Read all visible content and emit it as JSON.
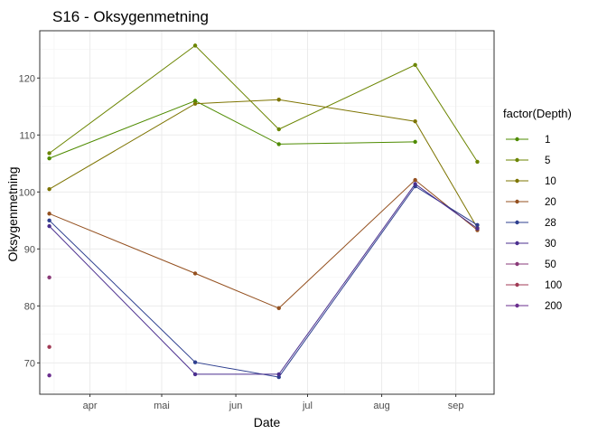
{
  "chart_data": {
    "type": "line",
    "title": "S16  -  Oksygenmetning",
    "xlabel": "Date",
    "ylabel": "Oksygenmetning",
    "x_ticks": [
      {
        "label": "apr",
        "date": "2023-04-01"
      },
      {
        "label": "mai",
        "date": "2023-05-01"
      },
      {
        "label": "jun",
        "date": "2023-06-01"
      },
      {
        "label": "jul",
        "date": "2023-07-01"
      },
      {
        "label": "aug",
        "date": "2023-08-01"
      },
      {
        "label": "sep",
        "date": "2023-09-01"
      }
    ],
    "y_ticks": [
      70,
      80,
      90,
      100,
      110,
      120
    ],
    "xlim": [
      "2023-03-11",
      "2023-09-17"
    ],
    "ylim": [
      64.5,
      128.3
    ],
    "grid": true,
    "legend": {
      "title": "factor(Depth)",
      "position": "right"
    },
    "series": [
      {
        "name": "1",
        "color": "#4E8B00",
        "points": [
          {
            "x": "2023-03-15",
            "y": 105.9
          },
          {
            "x": "2023-05-15",
            "y": 116.0
          },
          {
            "x": "2023-06-19",
            "y": 108.4
          },
          {
            "x": "2023-08-15",
            "y": 108.8
          }
        ]
      },
      {
        "name": "5",
        "color": "#6B8500",
        "points": [
          {
            "x": "2023-03-15",
            "y": 106.8
          },
          {
            "x": "2023-05-15",
            "y": 125.7
          },
          {
            "x": "2023-06-19",
            "y": 111.0
          },
          {
            "x": "2023-08-15",
            "y": 122.3
          },
          {
            "x": "2023-09-10",
            "y": 105.3
          }
        ]
      },
      {
        "name": "10",
        "color": "#7D7400",
        "points": [
          {
            "x": "2023-03-15",
            "y": 100.5
          },
          {
            "x": "2023-05-15",
            "y": 115.5
          },
          {
            "x": "2023-06-19",
            "y": 116.2
          },
          {
            "x": "2023-08-15",
            "y": 112.4
          },
          {
            "x": "2023-09-10",
            "y": 93.7
          }
        ]
      },
      {
        "name": "20",
        "color": "#94501F",
        "points": [
          {
            "x": "2023-03-15",
            "y": 96.2
          },
          {
            "x": "2023-05-15",
            "y": 85.7
          },
          {
            "x": "2023-06-19",
            "y": 79.6
          },
          {
            "x": "2023-08-15",
            "y": 102.1
          },
          {
            "x": "2023-09-10",
            "y": 93.3
          }
        ]
      },
      {
        "name": "28",
        "color": "#2E3F8F",
        "points": [
          {
            "x": "2023-03-15",
            "y": 95.0
          },
          {
            "x": "2023-05-15",
            "y": 70.1
          },
          {
            "x": "2023-06-19",
            "y": 67.5
          },
          {
            "x": "2023-08-15",
            "y": 101.0
          },
          {
            "x": "2023-09-10",
            "y": 94.2
          }
        ]
      },
      {
        "name": "30",
        "color": "#4B2F8F",
        "points": [
          {
            "x": "2023-03-15",
            "y": 94.0
          },
          {
            "x": "2023-05-15",
            "y": 68.0
          },
          {
            "x": "2023-06-19",
            "y": 68.0
          },
          {
            "x": "2023-08-15",
            "y": 101.4
          },
          {
            "x": "2023-09-10",
            "y": 93.6
          }
        ]
      },
      {
        "name": "50",
        "color": "#8A3A78",
        "points": [
          {
            "x": "2023-03-15",
            "y": 85.0
          }
        ]
      },
      {
        "name": "100",
        "color": "#A03A55",
        "points": [
          {
            "x": "2023-03-15",
            "y": 72.8
          }
        ]
      },
      {
        "name": "200",
        "color": "#6A2E8E",
        "points": [
          {
            "x": "2023-03-15",
            "y": 67.8
          }
        ]
      }
    ]
  }
}
